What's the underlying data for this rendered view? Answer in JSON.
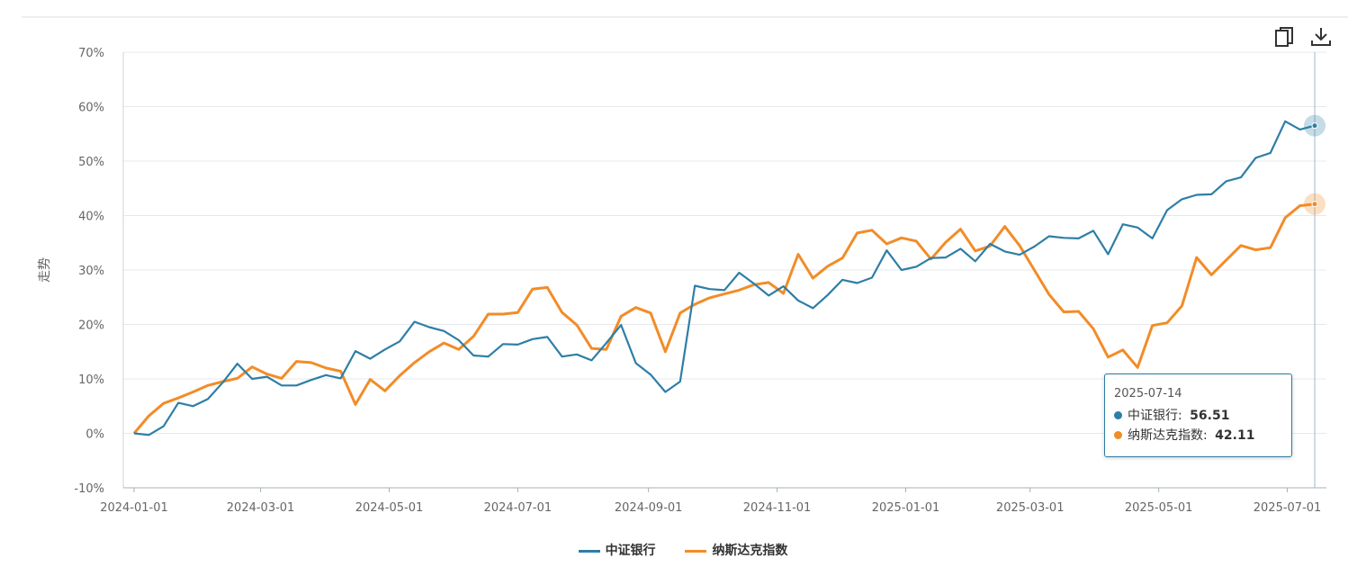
{
  "toolbar": {
    "copy_icon": "copy-icon",
    "download_icon": "download-icon"
  },
  "tooltip": {
    "date": "2025-07-14",
    "rows": [
      {
        "name": "中证银行",
        "value": "56.51",
        "color": "#2e7ea6"
      },
      {
        "name": "纳斯达克指数",
        "value": "42.11",
        "color": "#f28c28"
      }
    ]
  },
  "chart_data": {
    "type": "line",
    "ylabel": "走势",
    "x_ticks": [
      "2024-01-01",
      "2024-03-01",
      "2024-05-01",
      "2024-07-01",
      "2024-09-01",
      "2024-11-01",
      "2025-01-01",
      "2025-03-01",
      "2025-05-01",
      "2025-07-01"
    ],
    "y_ticks": [
      "-10%",
      "0%",
      "10%",
      "20%",
      "30%",
      "40%",
      "50%",
      "60%",
      "70%"
    ],
    "ylim": [
      -10,
      70
    ],
    "grid": true,
    "legend_position": "bottom",
    "x_start": "2024-01-01",
    "x_end": "2025-07-14",
    "series": [
      {
        "name": "中证银行",
        "color": "#2e7ea6",
        "values": [
          0,
          -0.3,
          1.3,
          5.6,
          5,
          6.3,
          9.3,
          12.8,
          10,
          10.4,
          8.8,
          8.8,
          9.8,
          10.7,
          10.1,
          15.1,
          13.7,
          15.4,
          16.9,
          20.5,
          19.5,
          18.8,
          17.1,
          14.3,
          14.1,
          16.4,
          16.3,
          17.3,
          17.7,
          14.1,
          14.5,
          13.4,
          16.6,
          19.9,
          12.9,
          10.8,
          7.6,
          9.5,
          27.1,
          26.5,
          26.3,
          29.5,
          27.5,
          25.3,
          27,
          24.4,
          23,
          25.4,
          28.2,
          27.6,
          28.6,
          33.6,
          30,
          30.6,
          32.2,
          32.3,
          33.9,
          31.6,
          34.8,
          33.4,
          32.8,
          34.3,
          36.2,
          35.9,
          35.8,
          37.2,
          32.9,
          38.4,
          37.8,
          35.8,
          41,
          43,
          43.8,
          43.9,
          46.3,
          47,
          50.6,
          51.5,
          57.3,
          55.8,
          56.51
        ]
      },
      {
        "name": "纳斯达克指数",
        "color": "#f28c28",
        "values": [
          0,
          3.2,
          5.5,
          6.5,
          7.6,
          8.8,
          9.5,
          10.1,
          12.2,
          10.9,
          10.1,
          13.2,
          13,
          12,
          11.4,
          5.3,
          9.9,
          7.8,
          10.6,
          13,
          15,
          16.6,
          15.4,
          17.8,
          21.9,
          21.9,
          22.2,
          26.5,
          26.8,
          22.2,
          19.9,
          15.6,
          15.4,
          21.5,
          23.1,
          22.1,
          15,
          22.1,
          23.7,
          24.9,
          25.6,
          26.3,
          27.3,
          27.7,
          25.7,
          32.9,
          28.5,
          30.7,
          32.2,
          36.8,
          37.3,
          34.8,
          35.9,
          35.3,
          32,
          35.1,
          37.5,
          33.5,
          34.4,
          38,
          34.5,
          30,
          25.5,
          22.3,
          22.4,
          19.2,
          14,
          15.3,
          12.1,
          19.8,
          20.3,
          23.4,
          32.3,
          29.1,
          31.8,
          34.5,
          33.7,
          34.1,
          39.6,
          41.8,
          42.11
        ]
      }
    ]
  }
}
